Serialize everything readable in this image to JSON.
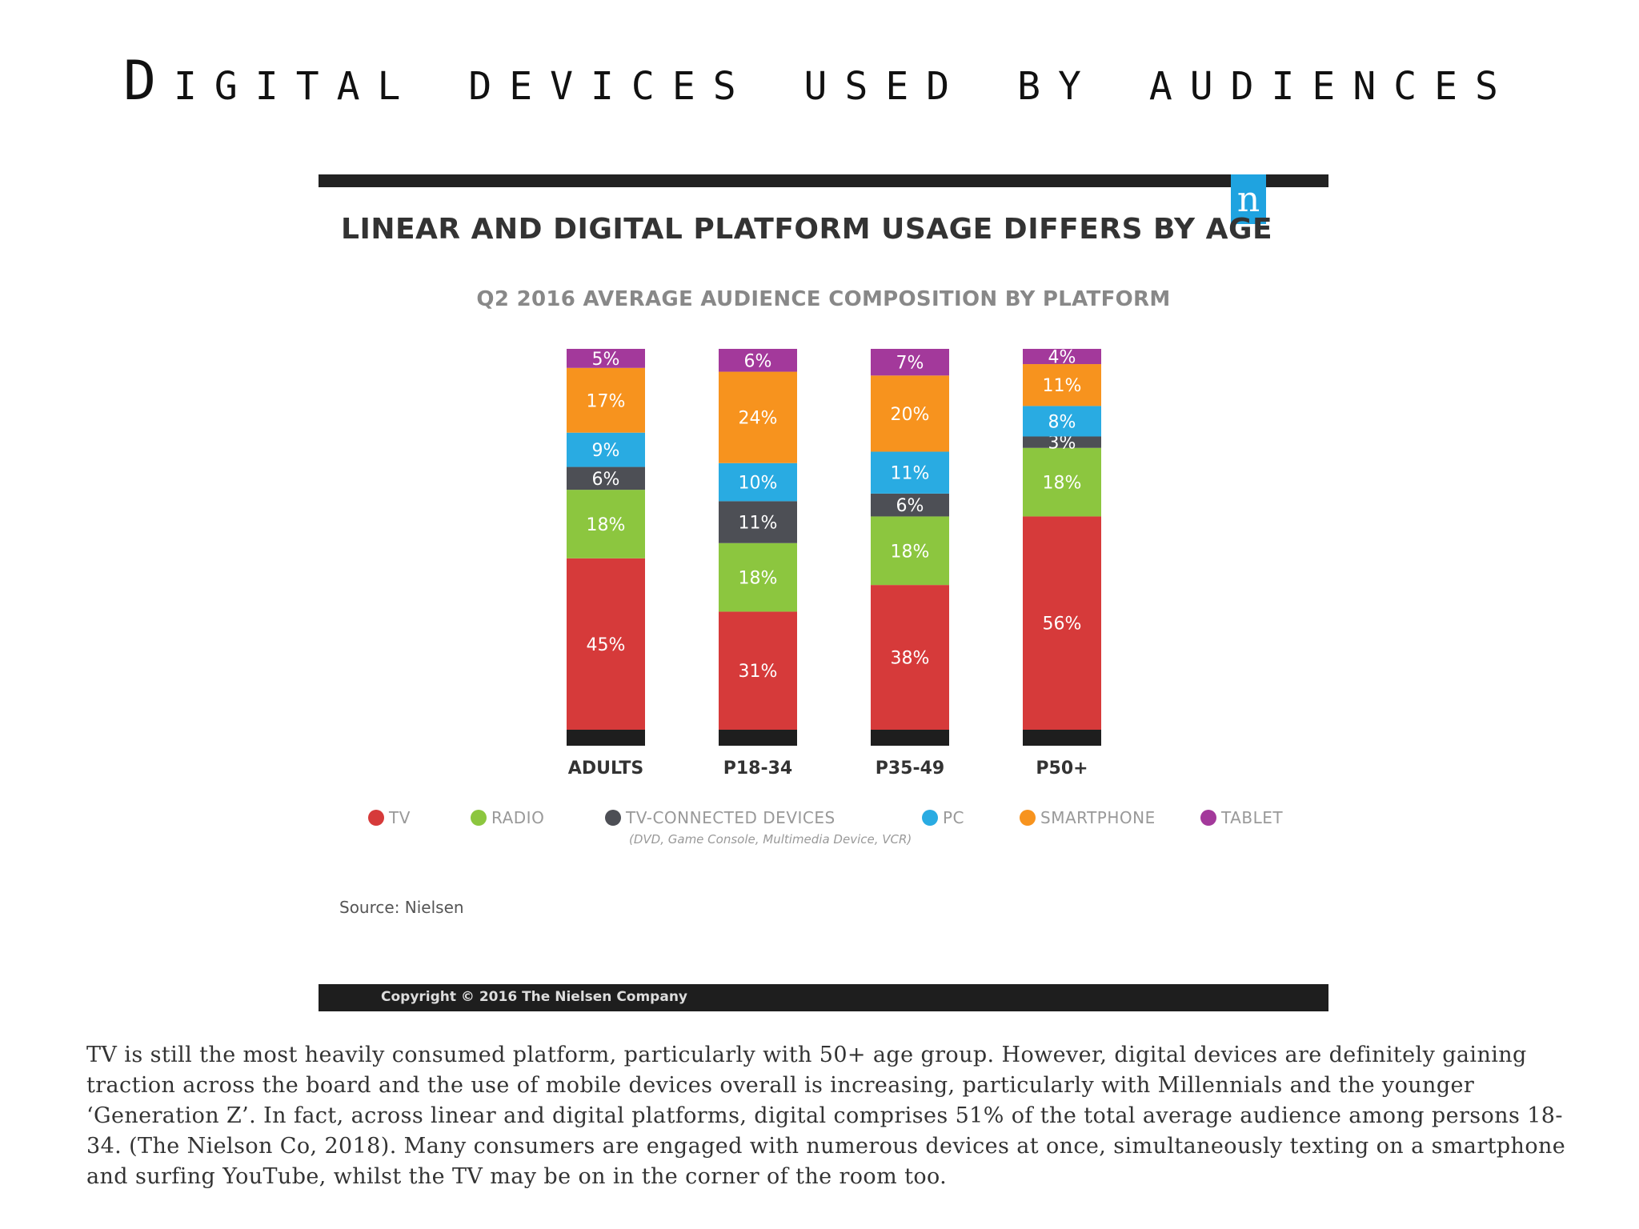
{
  "slide": {
    "title": "Digital devices used by audiences",
    "body_text": "TV is still the most heavily consumed platform, particularly with 50+ age group. However, digital devices are definitely gaining traction across the board and the use of mobile devices overall is increasing, particularly with Millennials and the younger ‘Generation Z’. In fact, across linear and digital platforms, digital comprises 51% of the total average audience among persons 18-34. (The Nielson Co, 2018). Many consumers are engaged with numerous devices at once, simultaneously texting on a smartphone and surfing YouTube, whilst the TV may be on in the corner of the room too."
  },
  "card": {
    "logo_letter": "n",
    "heading": "LINEAR AND DIGITAL PLATFORM USAGE DIFFERS BY AGE",
    "source": "Source: Nielsen",
    "copyright": "Copyright © 2016 The Nielsen Company",
    "legend_note": "(DVD, Game Console, Multimedia Device, VCR)"
  },
  "chart_data": {
    "type": "bar",
    "stacked": true,
    "title": "Q2 2016 AVERAGE AUDIENCE COMPOSITION BY PLATFORM",
    "categories": [
      "ADULTS",
      "P18-34",
      "P35-49",
      "P50+"
    ],
    "series": [
      {
        "name": "TV",
        "color": "#d63a3a",
        "values": [
          45,
          31,
          38,
          56
        ],
        "labels": [
          "45%",
          "31%",
          "38%",
          "56%"
        ]
      },
      {
        "name": "RADIO",
        "color": "#8cc63f",
        "values": [
          18,
          18,
          18,
          18
        ],
        "labels": [
          "18%",
          "18%",
          "18%",
          "18%"
        ]
      },
      {
        "name": "TV-CONNECTED DEVICES",
        "color": "#4d4f55",
        "values": [
          6,
          11,
          6,
          3
        ],
        "labels": [
          "6%",
          "11%",
          "6%",
          "3%"
        ]
      },
      {
        "name": "PC",
        "color": "#29abe2",
        "values": [
          9,
          10,
          11,
          8
        ],
        "labels": [
          "9%",
          "10%",
          "11%",
          "8%"
        ]
      },
      {
        "name": "SMARTPHONE",
        "color": "#f7931e",
        "values": [
          17,
          24,
          20,
          11
        ],
        "labels": [
          "17%",
          "24%",
          "20%",
          "11%"
        ]
      },
      {
        "name": "TABLET",
        "color": "#a3399b",
        "values": [
          5,
          6,
          7,
          4
        ],
        "labels": [
          "5%",
          "6%",
          "7%",
          "4%"
        ]
      }
    ],
    "legend_position": "bottom",
    "grid": false
  }
}
